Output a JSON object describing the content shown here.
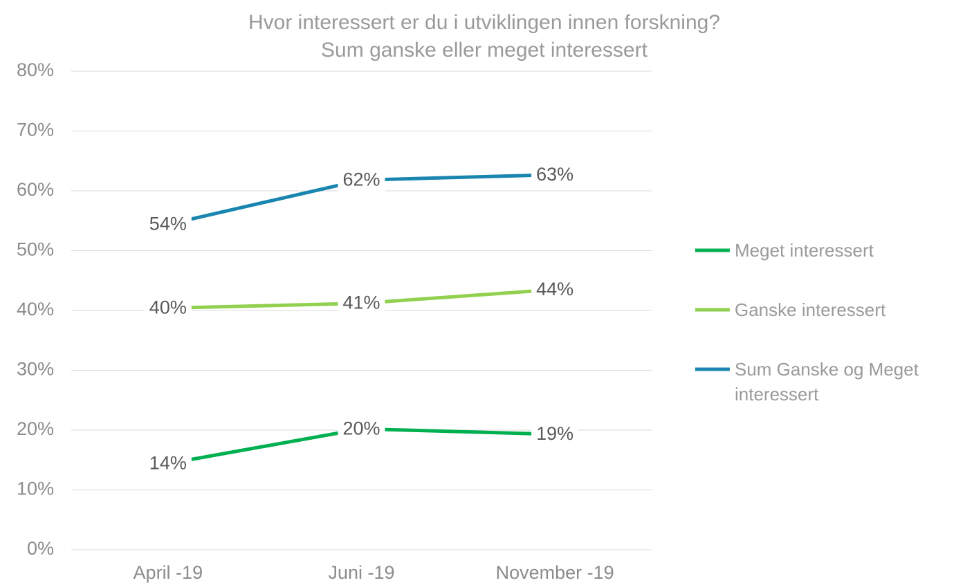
{
  "chart_data": {
    "type": "line",
    "title": "Hvor interessert er du i utviklingen innen forskning?",
    "subtitle": "Sum ganske eller meget interessert",
    "categories": [
      "April -19",
      "Juni -19",
      "November -19"
    ],
    "series": [
      {
        "name": "Meget interessert",
        "color": "#00b050",
        "values": [
          14.4,
          20.2,
          19.3
        ],
        "value_labels": [
          "14%",
          "20%",
          "19%"
        ]
      },
      {
        "name": "Ganske interessert",
        "color": "#92d050",
        "values": [
          40.4,
          41.2,
          43.5
        ],
        "value_labels": [
          "40%",
          "41%",
          "44%"
        ]
      },
      {
        "name": "Sum Ganske og Meget interessert",
        "color": "#1a86b0",
        "values": [
          54.4,
          61.8,
          62.7
        ],
        "value_labels": [
          "54%",
          "62%",
          "63%"
        ]
      }
    ],
    "ylim": [
      0,
      80
    ],
    "yticks": [
      {
        "value": 0,
        "label": "0%"
      },
      {
        "value": 10,
        "label": "10%"
      },
      {
        "value": 20,
        "label": "20%"
      },
      {
        "value": 30,
        "label": "30%"
      },
      {
        "value": 40,
        "label": "40%"
      },
      {
        "value": 50,
        "label": "50%"
      },
      {
        "value": 60,
        "label": "60%"
      },
      {
        "value": 70,
        "label": "70%"
      },
      {
        "value": 80,
        "label": "80%"
      }
    ],
    "grid": true,
    "legend": "right"
  }
}
